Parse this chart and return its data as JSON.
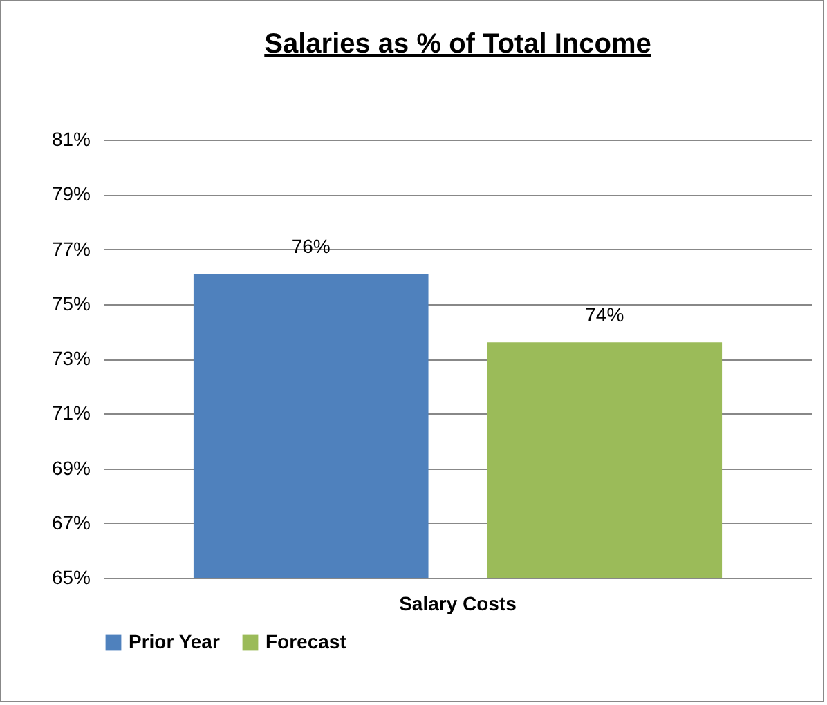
{
  "chart_data": {
    "type": "bar",
    "title": "Salaries as % of Total Income",
    "categories": [
      "Salary Costs"
    ],
    "series": [
      {
        "name": "Prior Year",
        "color": "#4f81bd",
        "values": [
          76.1
        ],
        "value_labels": [
          "76%"
        ]
      },
      {
        "name": "Forecast",
        "color": "#9bbb59",
        "values": [
          73.6
        ],
        "value_labels": [
          "74%"
        ]
      }
    ],
    "ylim": [
      65,
      81
    ],
    "yticks": [
      {
        "value": 65,
        "label": "65%"
      },
      {
        "value": 67,
        "label": "67%"
      },
      {
        "value": 69,
        "label": "69%"
      },
      {
        "value": 71,
        "label": "71%"
      },
      {
        "value": 73,
        "label": "73%"
      },
      {
        "value": 75,
        "label": "75%"
      },
      {
        "value": 77,
        "label": "77%"
      },
      {
        "value": 79,
        "label": "79%"
      },
      {
        "value": 81,
        "label": "81%"
      }
    ],
    "grid": "y",
    "legend": "bottom"
  }
}
